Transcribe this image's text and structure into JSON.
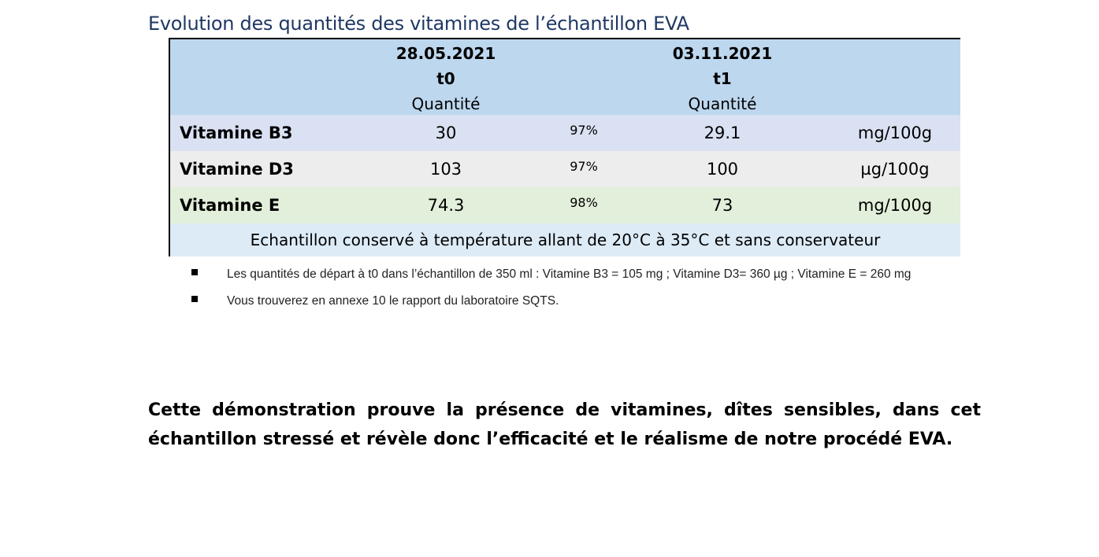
{
  "title": "Evolution des quantités des vitamines de l’échantillon EVA",
  "table": {
    "t0": {
      "date": "28.05.2021",
      "label": "t0",
      "quantity": "Quantité"
    },
    "t1": {
      "date": "03.11.2021",
      "label": "t1",
      "quantity": "Quantité"
    },
    "rows": [
      {
        "name": "Vitamine B3",
        "t0": "30",
        "pct": "97%",
        "t1": "29.1",
        "unit": "mg/100g"
      },
      {
        "name": "Vitamine D3",
        "t0": "103",
        "pct": "97%",
        "t1": "100",
        "unit": "µg/100g"
      },
      {
        "name": "Vitamine E",
        "t0": "74.3",
        "pct": "98%",
        "t1": "73",
        "unit": "mg/100g"
      }
    ],
    "footer": "Echantillon conservé à température allant de 20°C à 35°C et sans conservateur"
  },
  "bullets": [
    "Les quantités de départ à t0 dans l’échantillon de 350 ml : Vitamine B3 = 105 mg ; Vitamine D3= 360 µg ; Vitamine E = 260 mg",
    "Vous trouverez en annexe 10 le rapport du laboratoire SQTS."
  ],
  "conclusion": "Cette démonstration prouve la présence de vitamines, dîtes sensibles, dans cet échantillon stressé et révèle donc l’efficacité et le réalisme de notre procédé EVA."
}
